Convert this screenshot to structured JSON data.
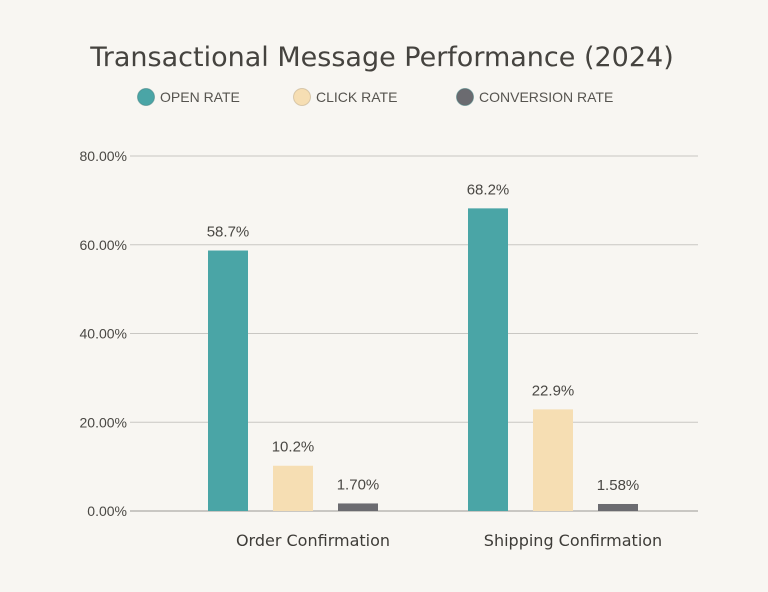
{
  "chart_data": {
    "type": "bar",
    "title": "Transactional Message Performance (2024)",
    "categories": [
      "Order Confirmation",
      "Shipping Confirmation"
    ],
    "series": [
      {
        "name": "OPEN RATE",
        "color": "#4aa5a6",
        "values": [
          58.7,
          68.2
        ],
        "labels": [
          "58.7%",
          "68.2%"
        ]
      },
      {
        "name": "CLICK RATE",
        "color": "#f6deb3",
        "values": [
          10.2,
          22.9
        ],
        "labels": [
          "10.2%",
          "22.9%"
        ]
      },
      {
        "name": "CONVERSION RATE",
        "color": "#6b6b70",
        "values": [
          1.7,
          1.58
        ],
        "labels": [
          "1.70%",
          "1.58%"
        ]
      }
    ],
    "ylim": [
      0,
      80
    ],
    "yticks": [
      "0.00%",
      "20.00%",
      "40.00%",
      "60.00%",
      "80.00%"
    ],
    "grid": true,
    "legend": "top"
  }
}
